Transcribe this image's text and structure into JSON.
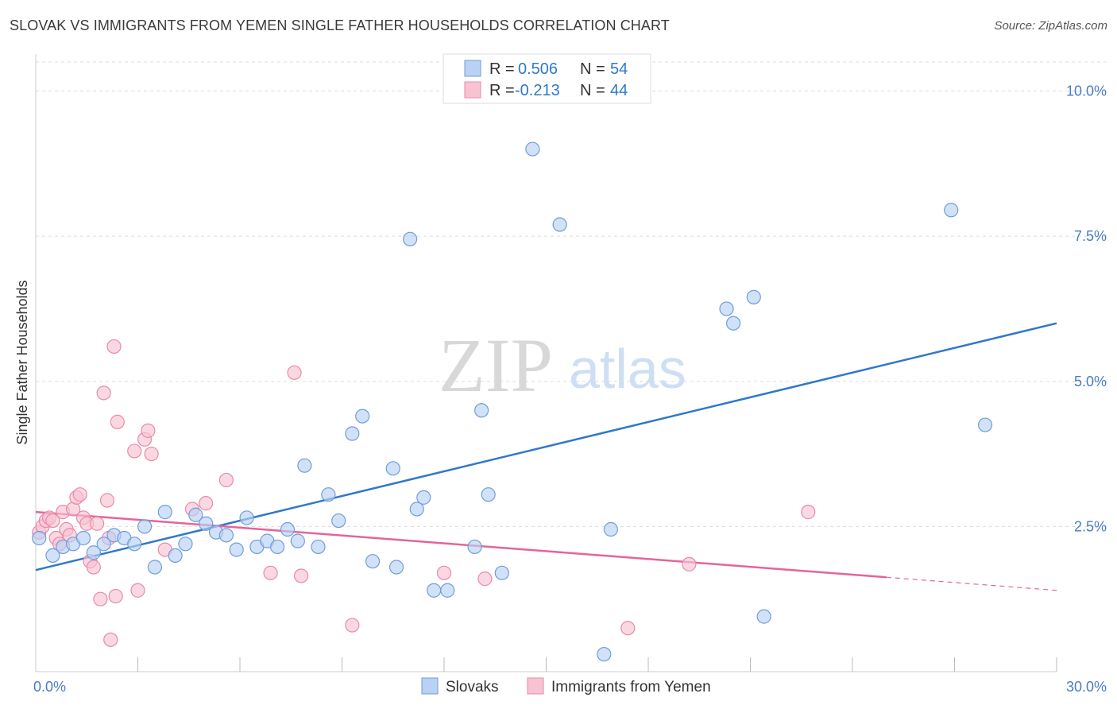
{
  "title": "SLOVAK VS IMMIGRANTS FROM YEMEN SINGLE FATHER HOUSEHOLDS CORRELATION CHART",
  "source": "Source: ZipAtlas.com",
  "watermark": {
    "zip": "ZIP",
    "atlas": "atlas"
  },
  "colors": {
    "blue_fill": "#b9d1f3",
    "blue_stroke": "#6f9ed9",
    "blue_line": "#2f78cc",
    "pink_fill": "#f7c3d3",
    "pink_stroke": "#e88aa8",
    "pink_line": "#e4659a",
    "tick_text": "#4a7cc4",
    "grid": "#dddddd"
  },
  "legend": {
    "rows": [
      {
        "r_label": "R =",
        "r_value": "0.506",
        "n_label": "N =",
        "n_value": "54",
        "series": "blue"
      },
      {
        "r_label": "R =",
        "r_value": "-0.213",
        "n_label": "N =",
        "n_value": "44",
        "series": "pink"
      }
    ]
  },
  "bottom_legend": [
    {
      "label": "Slovaks",
      "series": "blue"
    },
    {
      "label": "Immigrants from Yemen",
      "series": "pink"
    }
  ],
  "chart_data": {
    "type": "scatter",
    "title": "SLOVAK VS IMMIGRANTS FROM YEMEN SINGLE FATHER HOUSEHOLDS CORRELATION CHART",
    "xlabel": "",
    "ylabel": "Single Father Households",
    "xlim": [
      0,
      30
    ],
    "ylim": [
      0,
      10.5
    ],
    "x_tick_labels": [
      {
        "value": 0,
        "label": "0.0%"
      },
      {
        "value": 30,
        "label": "30.0%"
      }
    ],
    "y_tick_labels": [
      {
        "value": 2.5,
        "label": "2.5%"
      },
      {
        "value": 5.0,
        "label": "5.0%"
      },
      {
        "value": 7.5,
        "label": "7.5%"
      },
      {
        "value": 10.0,
        "label": "10.0%"
      }
    ],
    "x_minor_ticks": [
      3,
      6,
      9,
      12,
      15,
      18,
      21,
      24,
      27,
      30
    ],
    "grid": true,
    "legend_position": "top-center",
    "series": [
      {
        "name": "Slovaks",
        "color": "blue",
        "trend": {
          "x": [
            0,
            30
          ],
          "y": [
            1.75,
            6.0
          ],
          "dashed_from": null
        },
        "points": [
          [
            0.1,
            2.3
          ],
          [
            0.5,
            2.0
          ],
          [
            0.8,
            2.15
          ],
          [
            1.1,
            2.2
          ],
          [
            1.4,
            2.3
          ],
          [
            1.7,
            2.05
          ],
          [
            2.0,
            2.2
          ],
          [
            2.3,
            2.35
          ],
          [
            2.6,
            2.3
          ],
          [
            2.9,
            2.2
          ],
          [
            3.2,
            2.5
          ],
          [
            3.5,
            1.8
          ],
          [
            3.8,
            2.75
          ],
          [
            4.1,
            2.0
          ],
          [
            4.4,
            2.2
          ],
          [
            4.7,
            2.7
          ],
          [
            5.0,
            2.55
          ],
          [
            5.3,
            2.4
          ],
          [
            5.6,
            2.35
          ],
          [
            5.9,
            2.1
          ],
          [
            6.2,
            2.65
          ],
          [
            6.5,
            2.15
          ],
          [
            6.8,
            2.25
          ],
          [
            7.1,
            2.15
          ],
          [
            7.4,
            2.45
          ],
          [
            7.7,
            2.25
          ],
          [
            7.9,
            3.55
          ],
          [
            8.3,
            2.15
          ],
          [
            8.6,
            3.05
          ],
          [
            8.9,
            2.6
          ],
          [
            9.3,
            4.1
          ],
          [
            9.6,
            4.4
          ],
          [
            9.9,
            1.9
          ],
          [
            10.5,
            3.5
          ],
          [
            10.6,
            1.8
          ],
          [
            11.2,
            2.8
          ],
          [
            11.4,
            3.0
          ],
          [
            11.7,
            1.4
          ],
          [
            12.1,
            1.4
          ],
          [
            12.9,
            2.15
          ],
          [
            13.1,
            4.5
          ],
          [
            13.3,
            3.05
          ],
          [
            13.7,
            1.7
          ],
          [
            14.6,
            9.0
          ],
          [
            11.0,
            7.45
          ],
          [
            15.4,
            7.7
          ],
          [
            16.7,
            0.3
          ],
          [
            16.9,
            2.45
          ],
          [
            20.3,
            6.25
          ],
          [
            20.5,
            6.0
          ],
          [
            21.1,
            6.45
          ],
          [
            21.4,
            0.95
          ],
          [
            26.9,
            7.95
          ],
          [
            27.9,
            4.25
          ]
        ]
      },
      {
        "name": "Immigrants from Yemen",
        "color": "pink",
        "trend": {
          "x": [
            0,
            30
          ],
          "y": [
            2.75,
            1.4
          ],
          "dashed_from": 25
        },
        "points": [
          [
            0.1,
            2.4
          ],
          [
            0.2,
            2.5
          ],
          [
            0.3,
            2.6
          ],
          [
            0.4,
            2.65
          ],
          [
            0.5,
            2.6
          ],
          [
            0.6,
            2.3
          ],
          [
            0.7,
            2.2
          ],
          [
            0.8,
            2.75
          ],
          [
            0.9,
            2.45
          ],
          [
            1.0,
            2.35
          ],
          [
            1.1,
            2.8
          ],
          [
            1.2,
            3.0
          ],
          [
            1.3,
            3.05
          ],
          [
            1.4,
            2.65
          ],
          [
            1.5,
            2.55
          ],
          [
            1.6,
            1.9
          ],
          [
            1.7,
            1.8
          ],
          [
            1.8,
            2.55
          ],
          [
            1.9,
            1.25
          ],
          [
            2.0,
            4.8
          ],
          [
            2.1,
            2.95
          ],
          [
            2.15,
            2.3
          ],
          [
            2.2,
            0.55
          ],
          [
            2.3,
            5.6
          ],
          [
            2.35,
            1.3
          ],
          [
            2.4,
            4.3
          ],
          [
            2.9,
            3.8
          ],
          [
            3.0,
            1.4
          ],
          [
            3.2,
            4.0
          ],
          [
            3.3,
            4.15
          ],
          [
            3.4,
            3.75
          ],
          [
            3.8,
            2.1
          ],
          [
            4.6,
            2.8
          ],
          [
            5.0,
            2.9
          ],
          [
            5.6,
            3.3
          ],
          [
            6.9,
            1.7
          ],
          [
            7.6,
            5.15
          ],
          [
            7.8,
            1.65
          ],
          [
            9.3,
            0.8
          ],
          [
            12.0,
            1.7
          ],
          [
            13.2,
            1.6
          ],
          [
            17.4,
            0.75
          ],
          [
            19.2,
            1.85
          ],
          [
            22.7,
            2.75
          ]
        ]
      }
    ]
  }
}
